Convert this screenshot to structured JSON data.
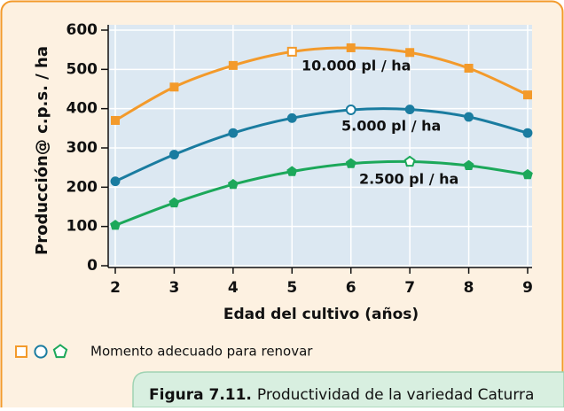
{
  "chart_data": {
    "type": "line",
    "y_label": "Producción@ c.p.s. / ha",
    "x_label": "Edad del cultivo (años)",
    "x": [
      2,
      3,
      4,
      5,
      6,
      7,
      8,
      9
    ],
    "xlim": [
      2,
      9
    ],
    "xticks": [
      2,
      3,
      4,
      5,
      6,
      7,
      8,
      9
    ],
    "ylim": [
      0,
      600
    ],
    "yticks": [
      0,
      100,
      200,
      300,
      400,
      500,
      600
    ],
    "grid": true,
    "series": [
      {
        "name": "10.000 pl / ha",
        "color": "#f39a2b",
        "marker": "square",
        "renew_at": 5,
        "values": [
          370,
          455,
          510,
          545,
          555,
          543,
          503,
          435
        ]
      },
      {
        "name": "5.000 pl / ha",
        "color": "#1a7ca0",
        "marker": "circle",
        "renew_at": 6,
        "values": [
          215,
          283,
          338,
          376,
          397,
          398,
          379,
          338
        ]
      },
      {
        "name": "2.500 pl / ha",
        "color": "#1ca85a",
        "marker": "pentagon",
        "renew_at": 7,
        "values": [
          103,
          160,
          207,
          240,
          260,
          265,
          255,
          232
        ]
      }
    ],
    "legend_note": "Momento adecuado para renovar",
    "caption": {
      "label": "Figura 7.11.",
      "text": "Productividad de la variedad Caturra"
    }
  }
}
